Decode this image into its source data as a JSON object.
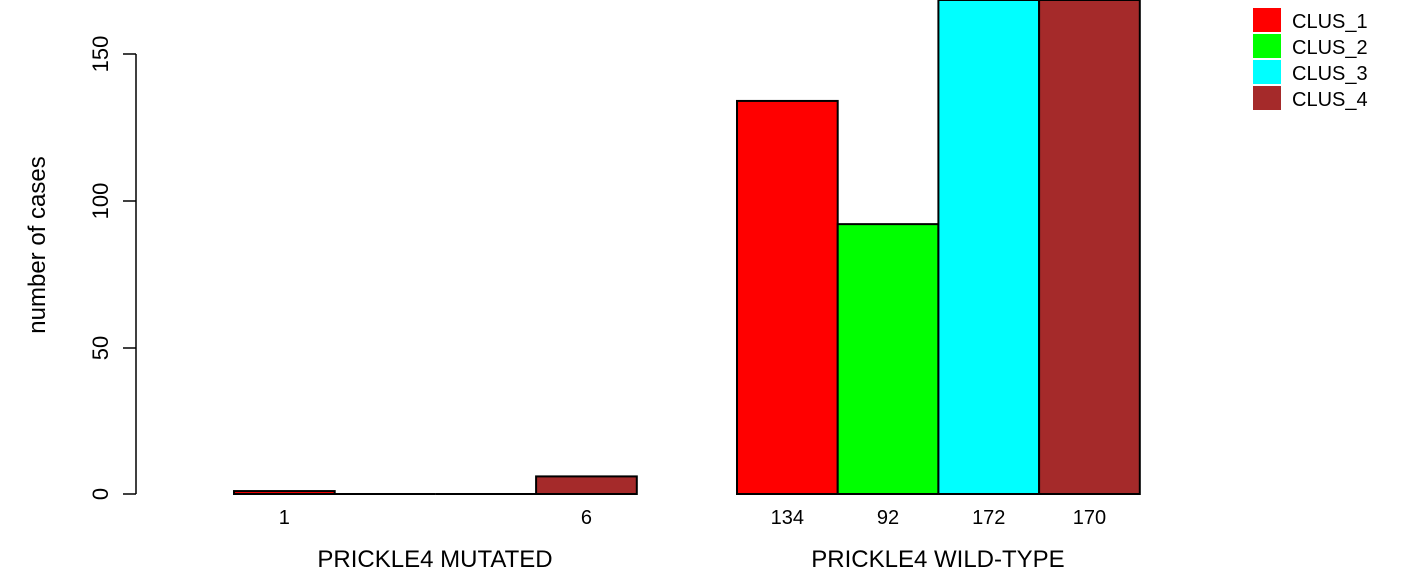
{
  "chart_data": {
    "type": "bar",
    "ylabel": "number of cases",
    "ylim": [
      0,
      170
    ],
    "yticks": [
      "0",
      "50",
      "100",
      "150"
    ],
    "groups": [
      {
        "name": "PRICKLE4 MUTATED",
        "values": [
          1,
          0,
          0,
          6
        ],
        "labels": [
          "1",
          "",
          "",
          "6"
        ]
      },
      {
        "name": "PRICKLE4 WILD-TYPE",
        "values": [
          134,
          92,
          172,
          170
        ],
        "labels": [
          "134",
          "92",
          "172",
          "170"
        ]
      }
    ],
    "series": [
      {
        "name": "CLUS_1",
        "color": "#ff0000"
      },
      {
        "name": "CLUS_2",
        "color": "#00ff00"
      },
      {
        "name": "CLUS_3",
        "color": "#00ffff"
      },
      {
        "name": "CLUS_4",
        "color": "#a52a2a"
      }
    ],
    "legend_position": "top-right"
  }
}
